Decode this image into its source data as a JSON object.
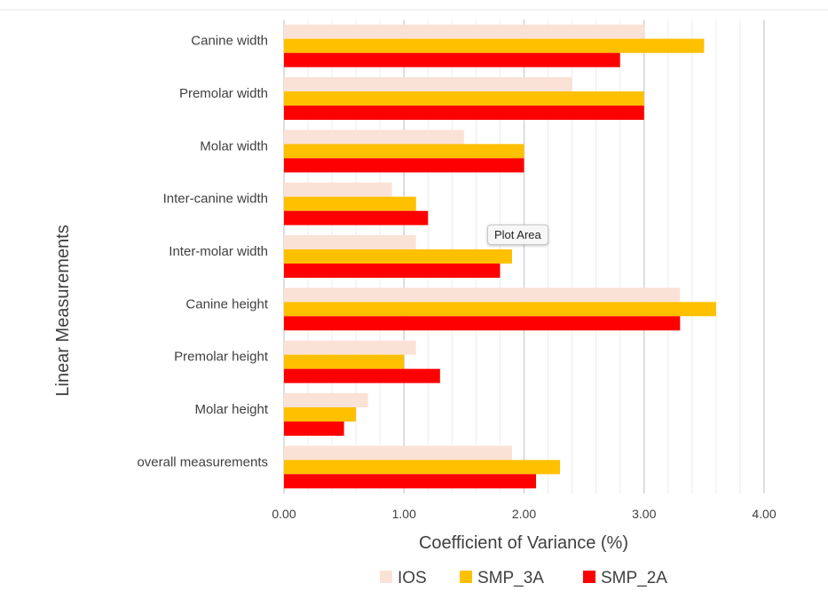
{
  "chart_data": {
    "type": "bar",
    "orientation": "horizontal",
    "categories": [
      "Canine width",
      "Premolar width",
      "Molar width",
      "Inter-canine width",
      "Inter-molar width",
      "Canine height",
      "Premolar height",
      "Molar height",
      "overall measurements"
    ],
    "series": [
      {
        "name": "IOS",
        "color": "#fbe2d6",
        "values": [
          3.0,
          2.4,
          1.5,
          0.9,
          1.1,
          3.3,
          1.1,
          0.7,
          1.9
        ]
      },
      {
        "name": "SMP_3A",
        "color": "#ffc000",
        "values": [
          3.5,
          3.0,
          2.0,
          1.1,
          1.9,
          3.6,
          1.0,
          0.6,
          2.3
        ]
      },
      {
        "name": "SMP_2A",
        "color": "#ff0000",
        "values": [
          2.8,
          3.0,
          2.0,
          1.2,
          1.8,
          3.3,
          1.3,
          0.5,
          2.1
        ]
      }
    ],
    "xlabel": "Coefficient of Variance (%)",
    "ylabel": "Linear Measurements",
    "xlim": [
      0,
      4
    ],
    "xticks": [
      "0.00",
      "1.00",
      "2.00",
      "3.00",
      "4.00"
    ],
    "x_major_step": 1.0,
    "x_minor_step": 0.2,
    "grid": true,
    "legend": "bottom"
  },
  "tooltip": {
    "text": "Plot Area"
  }
}
